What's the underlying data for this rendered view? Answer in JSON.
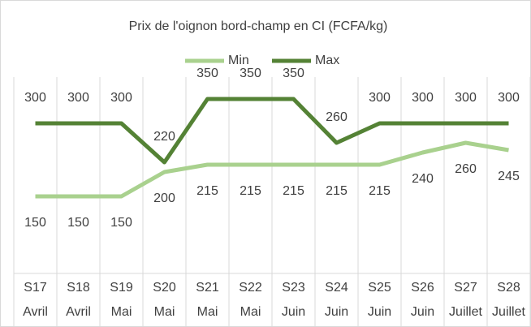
{
  "chart_data": {
    "type": "line",
    "title": "Prix de l'oignon bord-champ en CI (FCFA/kg)",
    "categories": [
      [
        "S17",
        "Avril"
      ],
      [
        "S18",
        "Avril"
      ],
      [
        "S19",
        "Mai"
      ],
      [
        "S20",
        "Mai"
      ],
      [
        "S21",
        "Mai"
      ],
      [
        "S22",
        "Mai"
      ],
      [
        "S23",
        "Juin"
      ],
      [
        "S24",
        "Juin"
      ],
      [
        "S25",
        "Juin"
      ],
      [
        "S26",
        "Juin"
      ],
      [
        "S27",
        "Juillet"
      ],
      [
        "S28",
        "Juillet"
      ]
    ],
    "series": [
      {
        "name": "Min",
        "color": "#a9d18e",
        "values": [
          150,
          150,
          150,
          200,
          215,
          215,
          215,
          215,
          215,
          240,
          260,
          245
        ]
      },
      {
        "name": "Max",
        "color": "#548235",
        "values": [
          300,
          300,
          300,
          220,
          350,
          350,
          350,
          260,
          300,
          300,
          300,
          300
        ]
      }
    ],
    "ylim": [
      0,
      400
    ],
    "legend": "top"
  }
}
